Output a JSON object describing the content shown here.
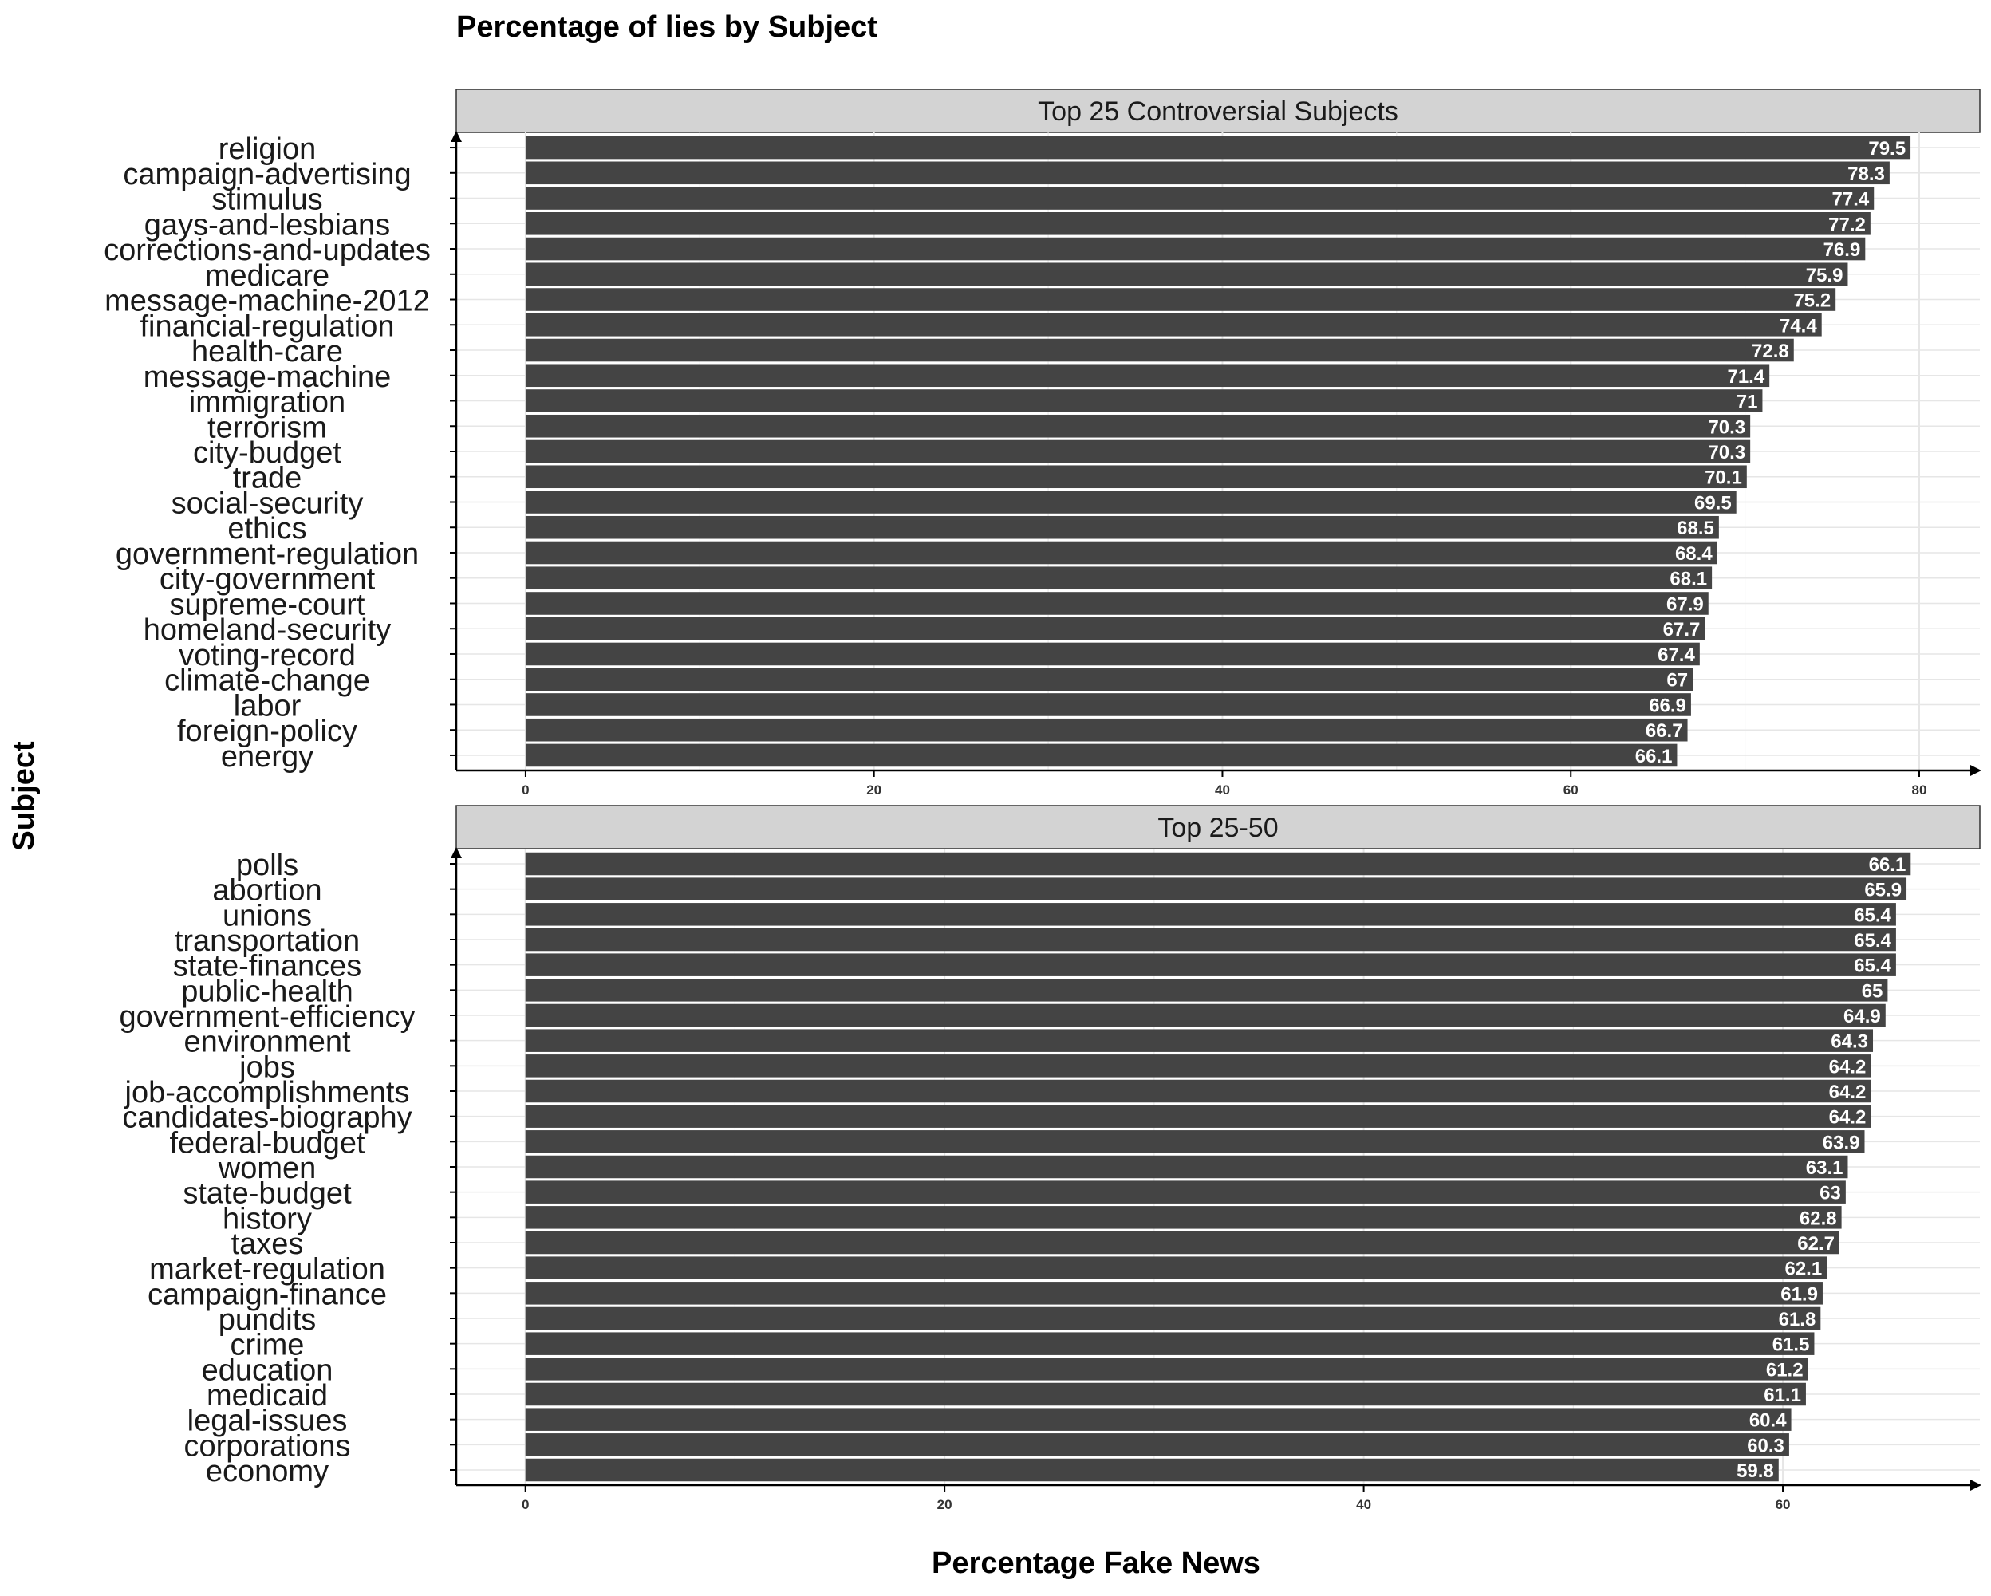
{
  "title": "Percentage of lies by Subject",
  "xlabel": "Percentage Fake News",
  "ylabel": "Subject",
  "colors": {
    "bar": "#444444",
    "strip": "#d3d3d3",
    "grid": "#e6e6e6",
    "axis": "#000000",
    "bar_label": "#ffffff"
  },
  "chart_data": [
    {
      "type": "bar",
      "orientation": "horizontal",
      "panel_title": "Top 25 Controversial Subjects",
      "categories": [
        "religion",
        "campaign-advertising",
        "stimulus",
        "gays-and-lesbians",
        "corrections-and-updates",
        "medicare",
        "message-machine-2012",
        "financial-regulation",
        "health-care",
        "message-machine",
        "immigration",
        "terrorism",
        "city-budget",
        "trade",
        "social-security",
        "ethics",
        "government-regulation",
        "city-government",
        "supreme-court",
        "homeland-security",
        "voting-record",
        "climate-change",
        "labor",
        "foreign-policy",
        "energy"
      ],
      "values": [
        79.5,
        78.3,
        77.4,
        77.2,
        76.9,
        75.9,
        75.2,
        74.4,
        72.8,
        71.4,
        71,
        70.3,
        70.3,
        70.1,
        69.5,
        68.5,
        68.4,
        68.1,
        67.9,
        67.7,
        67.4,
        67,
        66.9,
        66.7,
        66.1
      ],
      "labels": [
        "79.5",
        "78.3",
        "77.4",
        "77.2",
        "76.9",
        "75.9",
        "75.2",
        "74.4",
        "72.8",
        "71.4",
        "71",
        "70.3",
        "70.3",
        "70.1",
        "69.5",
        "68.5",
        "68.4",
        "68.1",
        "67.9",
        "67.7",
        "67.4",
        "67",
        "66.9",
        "66.7",
        "66.1"
      ],
      "xlim": [
        -3.98,
        83.48
      ],
      "xticks": [
        0,
        20,
        40,
        60,
        80
      ],
      "xtick_labels": [
        "0",
        "20",
        "40",
        "60",
        "80"
      ],
      "grid": true
    },
    {
      "type": "bar",
      "orientation": "horizontal",
      "panel_title": "Top 25-50",
      "categories": [
        "polls",
        "abortion",
        "unions",
        "transportation",
        "state-finances",
        "public-health",
        "government-efficiency",
        "environment",
        "jobs",
        "job-accomplishments",
        "candidates-biography",
        "federal-budget",
        "women",
        "state-budget",
        "history",
        "taxes",
        "market-regulation",
        "campaign-finance",
        "pundits",
        "crime",
        "education",
        "medicaid",
        "legal-issues",
        "corporations",
        "economy"
      ],
      "values": [
        66.1,
        65.9,
        65.4,
        65.4,
        65.4,
        65,
        64.9,
        64.3,
        64.2,
        64.2,
        64.2,
        63.9,
        63.1,
        63,
        62.8,
        62.7,
        62.1,
        61.9,
        61.8,
        61.5,
        61.2,
        61.1,
        60.4,
        60.3,
        59.8
      ],
      "labels": [
        "66.1",
        "65.9",
        "65.4",
        "65.4",
        "65.4",
        "65",
        "64.9",
        "64.3",
        "64.2",
        "64.2",
        "64.2",
        "63.9",
        "63.1",
        "63",
        "62.8",
        "62.7",
        "62.1",
        "61.9",
        "61.8",
        "61.5",
        "61.2",
        "61.1",
        "60.4",
        "60.3",
        "59.8"
      ],
      "xlim": [
        -3.3,
        69.4
      ],
      "xticks": [
        0,
        20,
        40,
        60
      ],
      "xtick_labels": [
        "0",
        "20",
        "40",
        "60"
      ],
      "grid": true
    }
  ]
}
